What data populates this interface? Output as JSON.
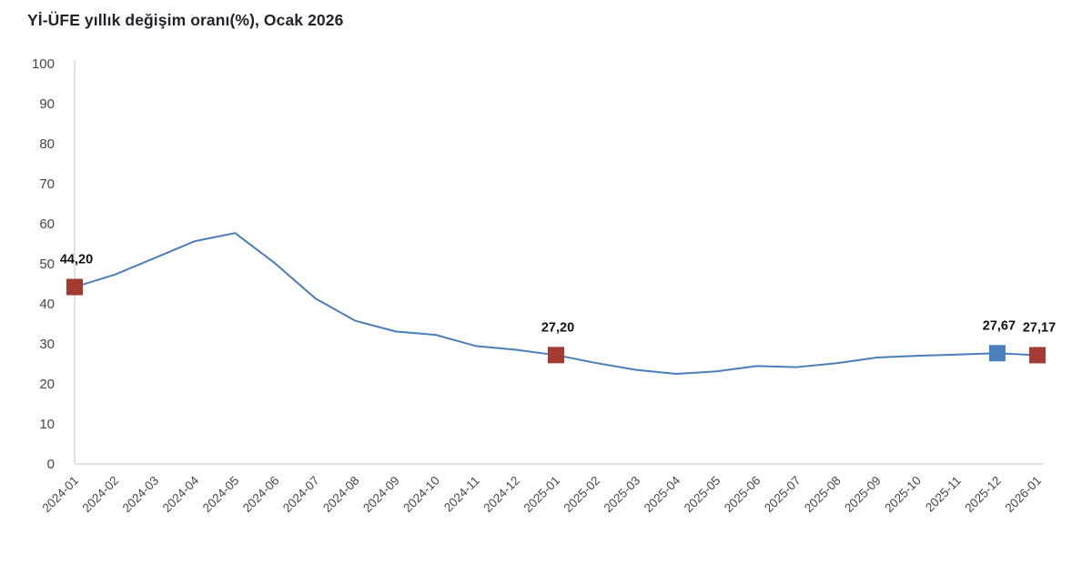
{
  "title": "Yİ-ÜFE yıllık değişim oranı(%), Ocak 2026",
  "chart_data": {
    "type": "line",
    "title": "Yİ-ÜFE yıllık değişim oranı(%), Ocak 2026",
    "x": [
      "2024-01",
      "2024-02",
      "2024-03",
      "2024-04",
      "2024-05",
      "2024-06",
      "2024-07",
      "2024-08",
      "2024-09",
      "2024-10",
      "2024-11",
      "2024-12",
      "2025-01",
      "2025-02",
      "2025-03",
      "2025-04",
      "2025-05",
      "2025-06",
      "2025-07",
      "2025-08",
      "2025-09",
      "2025-10",
      "2025-11",
      "2025-12",
      "2026-01"
    ],
    "values": [
      44.2,
      47.29,
      51.47,
      55.66,
      57.68,
      50.09,
      41.37,
      35.75,
      33.09,
      32.24,
      29.47,
      28.52,
      27.2,
      25.21,
      23.5,
      22.5,
      23.13,
      24.45,
      24.19,
      25.16,
      26.59,
      27.02,
      27.32,
      27.67,
      27.17
    ],
    "ylim": [
      0,
      100
    ],
    "ytick_step": 10,
    "yticks": [
      0,
      10,
      20,
      30,
      40,
      50,
      60,
      70,
      80,
      90,
      100
    ],
    "grid": false,
    "legend": "none",
    "colors": {
      "line": "#4a7ebb",
      "marker_red": "#a33b32",
      "marker_blue": "#4a80c0",
      "axis_line": "#d9d9d9",
      "tick_label": "#474747",
      "data_label": "#111111"
    },
    "labeled_points": [
      {
        "index": 0,
        "x": "2024-01",
        "label": "44,20",
        "marker": "marker_red"
      },
      {
        "index": 12,
        "x": "2025-01",
        "label": "27,20",
        "marker": "marker_red"
      },
      {
        "index": 23,
        "x": "2025-12",
        "label": "27,67",
        "marker": "marker_blue"
      },
      {
        "index": 24,
        "x": "2026-01",
        "label": "27,17",
        "marker": "marker_red"
      }
    ]
  }
}
